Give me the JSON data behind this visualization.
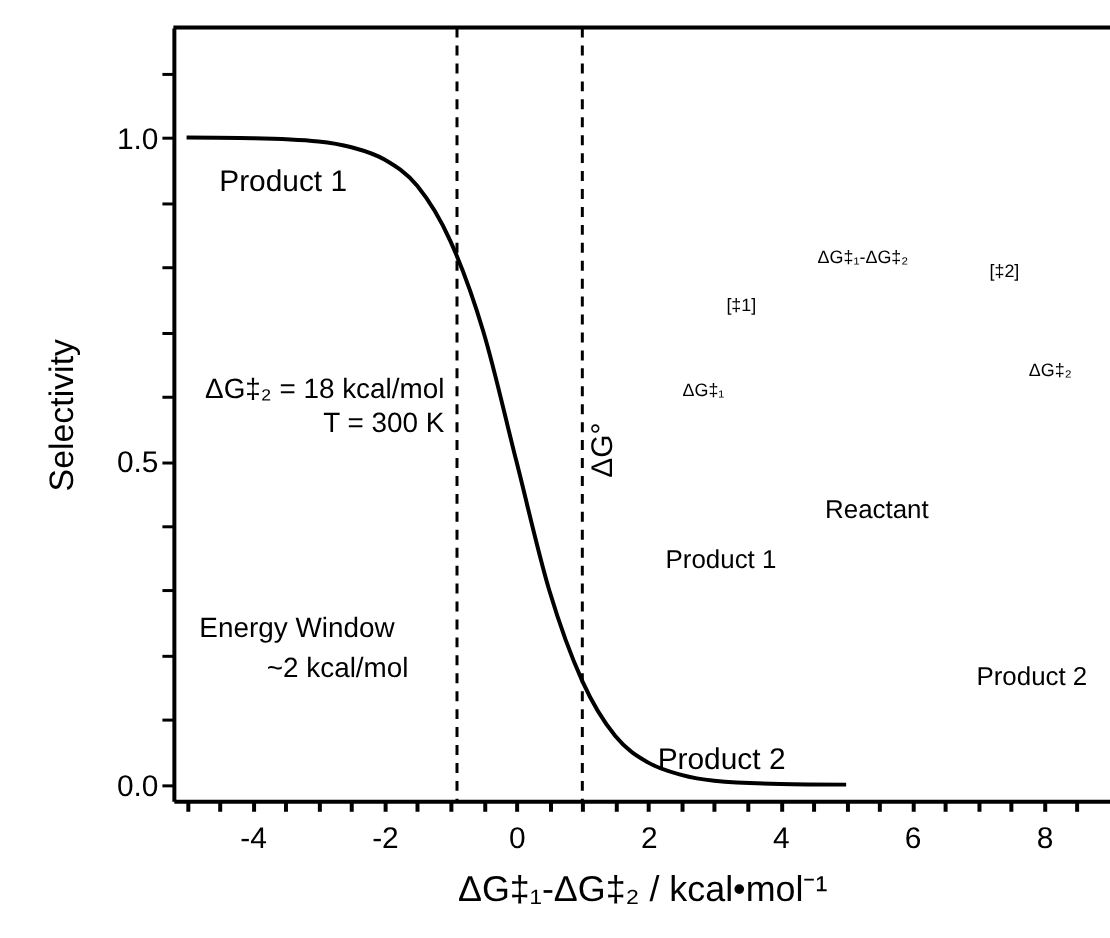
{
  "chart_data": {
    "type": "line",
    "xlabel": "ΔG‡₁-ΔG‡₂ / kcal•mol⁻¹",
    "ylabel": "Selectivity",
    "x": [
      -5,
      -4,
      -3,
      -2.5,
      -2,
      -1.5,
      -1,
      -0.5,
      0,
      0.5,
      1,
      1.5,
      2,
      2.5,
      3,
      4,
      5
    ],
    "series": [
      {
        "color": "#000000",
        "line_style": "solid",
        "values": [
          1.0,
          0.999,
          0.994,
          0.985,
          0.966,
          0.925,
          0.84,
          0.7,
          0.5,
          0.3,
          0.16,
          0.075,
          0.034,
          0.015,
          0.006,
          0.001,
          0.0
        ]
      }
    ],
    "xlim": [
      -5.2,
      9
    ],
    "ylim": [
      -0.025,
      1.17
    ],
    "xticks": [
      {
        "value": -5,
        "label": null
      },
      {
        "value": -4.5,
        "label": null
      },
      -4,
      {
        "value": -3.5,
        "label": null
      },
      {
        "value": -3,
        "label": null
      },
      {
        "value": -2.5,
        "label": null
      },
      -2,
      {
        "value": -1.5,
        "label": null
      },
      {
        "value": -1,
        "label": null
      },
      {
        "value": -0.5,
        "label": null
      },
      0,
      {
        "value": 0.5,
        "label": null
      },
      {
        "value": 1,
        "label": null
      },
      {
        "value": 1.5,
        "label": null
      },
      2,
      {
        "value": 2.5,
        "label": null
      },
      {
        "value": 3,
        "label": null
      },
      {
        "value": 3.5,
        "label": null
      },
      4,
      {
        "value": 4.5,
        "label": null
      },
      {
        "value": 5,
        "label": null
      },
      {
        "value": 5.5,
        "label": null
      },
      6,
      {
        "value": 6.5,
        "label": null
      },
      {
        "value": 7,
        "label": null
      },
      {
        "value": 7.5,
        "label": null
      },
      8,
      {
        "value": 8.5,
        "label": null
      }
    ],
    "yticks": [
      {
        "value": 0,
        "label": "0.0"
      },
      {
        "value": 0.1,
        "label": null
      },
      {
        "value": 0.2,
        "label": null
      },
      {
        "value": 0.3,
        "label": null
      },
      {
        "value": 0.4,
        "label": null
      },
      {
        "value": 0.5,
        "label": "0.5"
      },
      {
        "value": 0.6,
        "label": null
      },
      {
        "value": 0.7,
        "label": null
      },
      {
        "value": 0.8,
        "label": null
      },
      {
        "value": 0.9,
        "label": null
      },
      {
        "value": 1,
        "label": "1.0"
      },
      {
        "value": 1.1,
        "label": null
      }
    ],
    "ref_lines": [
      {
        "axis": "x",
        "value": -0.9,
        "line_style": "dashed"
      },
      {
        "axis": "x",
        "value": 1.0,
        "line_style": "dashed"
      }
    ],
    "grid": false,
    "annotations": [
      "Product 1",
      "ΔG‡₂ = 18 kcal/mol",
      "T = 300 K",
      "Energy Window",
      "~2 kcal/mol",
      "Product 2",
      "ΔG°",
      "Product 1",
      "Reactant",
      "Product 2",
      "ΔG‡₁",
      "[‡1]",
      "[‡2]",
      "ΔG‡₂",
      "ΔG‡₁-ΔG‡₂"
    ]
  }
}
